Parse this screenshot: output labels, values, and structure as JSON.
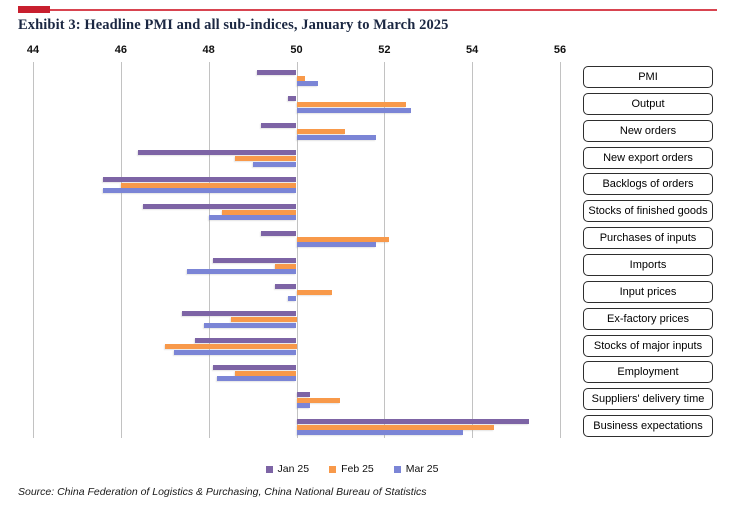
{
  "header": {
    "title": "Exhibit 3: Headline PMI and all sub-indices, January to March 2025"
  },
  "colors": {
    "accent_red_line": "#d84450",
    "accent_red_block": "#c81f2e",
    "gridline": "#c2c2c2",
    "title_text": "#1b2742"
  },
  "chart_data": {
    "type": "bar",
    "orientation": "horizontal",
    "title": "Exhibit 3: Headline PMI and all sub-indices, January to March 2025",
    "baseline": 50,
    "xlim": [
      44,
      56
    ],
    "x_ticks": [
      44,
      46,
      48,
      50,
      52,
      54,
      56
    ],
    "axis_position": "top",
    "grid": true,
    "legend_position": "bottom",
    "categories": [
      "PMI",
      "Output",
      "New orders",
      "New export orders",
      "Backlogs of orders",
      "Stocks of finished goods",
      "Purchases of inputs",
      "Imports",
      "Input prices",
      "Ex-factory prices",
      "Stocks of major inputs",
      "Employment",
      "Suppliers' delivery time",
      "Business expectations"
    ],
    "series": [
      {
        "name": "Jan 25",
        "color": "#7d64a5",
        "values": [
          49.1,
          49.8,
          49.2,
          46.4,
          45.6,
          46.5,
          49.2,
          48.1,
          49.5,
          47.4,
          47.7,
          48.1,
          50.3,
          55.3
        ]
      },
      {
        "name": "Feb 25",
        "color": "#f8994a",
        "values": [
          50.2,
          52.5,
          51.1,
          48.6,
          46.0,
          48.3,
          52.1,
          49.5,
          50.8,
          48.5,
          47.0,
          48.6,
          51.0,
          54.5
        ]
      },
      {
        "name": "Mar 25",
        "color": "#7b85d6",
        "values": [
          50.5,
          52.6,
          51.8,
          49.0,
          45.6,
          48.0,
          51.8,
          47.5,
          49.8,
          47.9,
          47.2,
          48.2,
          50.3,
          53.8
        ]
      }
    ]
  },
  "footer": {
    "source": "Source: China Federation of Logistics & Purchasing, China National Bureau of Statistics"
  }
}
